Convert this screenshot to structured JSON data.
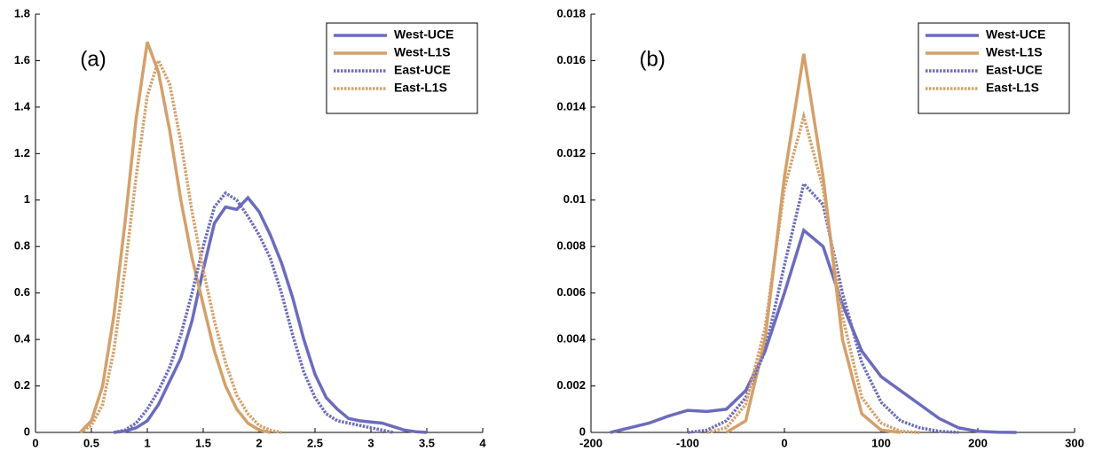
{
  "chart_data": [
    {
      "type": "line",
      "annotation": "(a)",
      "legend": "upper right",
      "x": [
        0.3,
        0.4,
        0.5,
        0.6,
        0.7,
        0.8,
        0.9,
        1.0,
        1.1,
        1.2,
        1.3,
        1.4,
        1.5,
        1.6,
        1.7,
        1.8,
        1.9,
        2.0,
        2.1,
        2.2,
        2.3,
        2.4,
        2.5,
        2.6,
        2.7,
        2.8,
        2.9,
        3.0,
        3.1,
        3.2,
        3.3,
        3.4,
        3.5
      ],
      "xlim": [
        0,
        4
      ],
      "xticks": [
        0,
        0.5,
        1,
        1.5,
        2,
        2.5,
        3,
        3.5,
        4
      ],
      "ylim": [
        0,
        1.8
      ],
      "yticks": [
        0,
        0.2,
        0.4,
        0.6,
        0.8,
        1,
        1.2,
        1.4,
        1.6,
        1.8
      ],
      "series": [
        {
          "name": "West-UCE",
          "color": "#6b6bbd",
          "linestyle": "solid",
          "values": [
            null,
            null,
            null,
            null,
            0,
            0.005,
            0.02,
            0.05,
            0.12,
            0.22,
            0.32,
            0.48,
            0.7,
            0.9,
            0.97,
            0.96,
            1.01,
            0.95,
            0.85,
            0.73,
            0.58,
            0.4,
            0.25,
            0.15,
            0.1,
            0.06,
            0.05,
            0.045,
            0.04,
            0.025,
            0.01,
            0.003,
            0
          ]
        },
        {
          "name": "West-L1S",
          "color": "#d4a06a",
          "linestyle": "solid",
          "values": [
            null,
            0,
            0.05,
            0.2,
            0.5,
            0.9,
            1.35,
            1.68,
            1.55,
            1.3,
            1.0,
            0.75,
            0.55,
            0.35,
            0.2,
            0.1,
            0.04,
            0.01,
            0,
            null,
            null,
            null,
            null,
            null,
            null,
            null,
            null,
            null,
            null,
            null,
            null,
            null,
            null
          ]
        },
        {
          "name": "East-UCE",
          "color": "#6b6bbd",
          "linestyle": "dotted",
          "values": [
            null,
            null,
            null,
            null,
            0,
            0.01,
            0.04,
            0.1,
            0.18,
            0.28,
            0.42,
            0.6,
            0.8,
            0.97,
            1.03,
            1.0,
            0.93,
            0.85,
            0.75,
            0.6,
            0.42,
            0.26,
            0.15,
            0.08,
            0.05,
            0.04,
            0.03,
            0.02,
            0.01,
            0,
            null,
            null,
            null
          ]
        },
        {
          "name": "East-L1S",
          "color": "#d4a06a",
          "linestyle": "dotted",
          "values": [
            null,
            0,
            0.03,
            0.12,
            0.35,
            0.7,
            1.1,
            1.45,
            1.6,
            1.5,
            1.25,
            0.95,
            0.7,
            0.48,
            0.3,
            0.16,
            0.08,
            0.03,
            0.01,
            0,
            null,
            null,
            null,
            null,
            null,
            null,
            null,
            null,
            null,
            null,
            null,
            null,
            null
          ]
        }
      ]
    },
    {
      "type": "line",
      "annotation": "(b)",
      "legend": "upper right",
      "x": [
        -180,
        -160,
        -140,
        -120,
        -100,
        -80,
        -60,
        -40,
        -20,
        0,
        20,
        40,
        60,
        80,
        100,
        120,
        140,
        160,
        180,
        200,
        220,
        240
      ],
      "xlim": [
        -200,
        300
      ],
      "xticks": [
        -200,
        -100,
        0,
        100,
        200,
        300
      ],
      "ylim": [
        0,
        0.018
      ],
      "yticks": [
        0,
        0.002,
        0.004,
        0.006,
        0.008,
        0.01,
        0.012,
        0.014,
        0.016,
        0.018
      ],
      "series": [
        {
          "name": "West-UCE",
          "color": "#6b6bbd",
          "linestyle": "solid",
          "values": [
            0,
            0.0002,
            0.0004,
            0.0007,
            0.00095,
            0.0009,
            0.001,
            0.0018,
            0.0035,
            0.006,
            0.0087,
            0.008,
            0.0055,
            0.0035,
            0.0024,
            0.0018,
            0.0012,
            0.0006,
            0.0002,
            5e-05,
            1e-05,
            0
          ]
        },
        {
          "name": "West-L1S",
          "color": "#d4a06a",
          "linestyle": "solid",
          "values": [
            null,
            null,
            null,
            null,
            null,
            null,
            0,
            0.0005,
            0.004,
            0.011,
            0.0163,
            0.011,
            0.004,
            0.0008,
            0.0001,
            0,
            null,
            null,
            null,
            null,
            null,
            null
          ]
        },
        {
          "name": "East-UCE",
          "color": "#6b6bbd",
          "linestyle": "dotted",
          "values": [
            null,
            null,
            null,
            null,
            0,
            0.0001,
            0.0005,
            0.0015,
            0.0035,
            0.0072,
            0.0107,
            0.0098,
            0.006,
            0.003,
            0.0013,
            0.0005,
            0.0002,
            5e-05,
            0,
            null,
            null,
            null
          ]
        },
        {
          "name": "East-L1S",
          "color": "#d4a06a",
          "linestyle": "dotted",
          "values": [
            null,
            null,
            null,
            null,
            null,
            0,
            0.0002,
            0.0012,
            0.0045,
            0.0105,
            0.0136,
            0.0105,
            0.005,
            0.0015,
            0.0004,
            5e-05,
            0,
            null,
            null,
            null,
            null,
            null
          ]
        }
      ]
    }
  ]
}
